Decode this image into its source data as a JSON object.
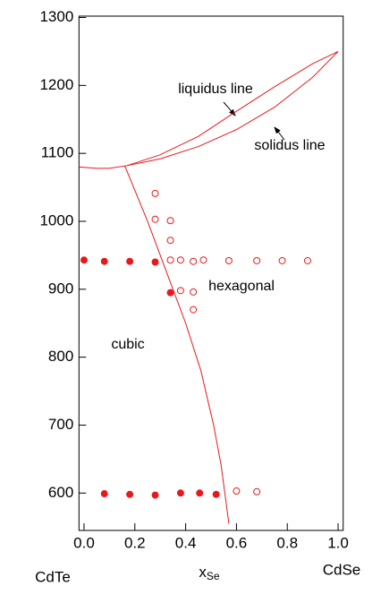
{
  "chart_data": {
    "type": "scatter",
    "x_label": "x",
    "x_label_sub": "Se",
    "annotations": [
      "liquidus line",
      "solidus line",
      "hexagonal",
      "cubic",
      "CdTe",
      "CdSe"
    ],
    "xlim": [
      -0.02,
      1.02
    ],
    "ylim": [
      545,
      1302
    ],
    "xticks": [
      {
        "value": 0,
        "label": "0.0"
      },
      0.2,
      0.4,
      0.6,
      0.8,
      {
        "value": 1,
        "label": "1.0"
      }
    ],
    "yticks": [
      600,
      700,
      800,
      900,
      1000,
      1100,
      1200,
      1300
    ],
    "series": [
      {
        "mode": "markers",
        "filled": true,
        "color": "#e8191c",
        "x": [
          0,
          0.08,
          0.18,
          0.28,
          0.34,
          0.08,
          0.18,
          0.28,
          0.38,
          0.455,
          0.52
        ],
        "values": [
          943,
          941,
          941,
          940,
          895,
          599,
          598,
          597,
          600,
          600,
          598
        ]
      },
      {
        "mode": "markers",
        "filled": false,
        "color": "#e8191c",
        "x": [
          0.28,
          0.28,
          0.34,
          0.34,
          0.34,
          0.38,
          0.43,
          0.47,
          0.57,
          0.68,
          0.78,
          0.88,
          0.38,
          0.43,
          0.43,
          0.6,
          0.68
        ],
        "values": [
          1041,
          1003,
          1001,
          972,
          943,
          943,
          941,
          943,
          942,
          942,
          942,
          942,
          898,
          896,
          870,
          603,
          602
        ]
      },
      {
        "mode": "lines",
        "color": "#e8191c",
        "x": [
          -0.02,
          0.05,
          0.1,
          0.17,
          0.3,
          0.45,
          0.6,
          0.75,
          0.9,
          1.0
        ],
        "values": [
          1080,
          1078,
          1078,
          1082,
          1098,
          1125,
          1162,
          1198,
          1232,
          1250
        ]
      },
      {
        "mode": "lines",
        "color": "#e8191c",
        "x": [
          0.17,
          0.3,
          0.45,
          0.6,
          0.75,
          0.9,
          1.0
        ],
        "values": [
          1082,
          1092,
          1110,
          1135,
          1168,
          1212,
          1250
        ]
      },
      {
        "mode": "lines",
        "color": "#e8191c",
        "x": [
          0.16,
          0.25,
          0.33,
          0.4,
          0.46,
          0.51,
          0.54,
          0.57
        ],
        "values": [
          1082,
          1000,
          920,
          850,
          780,
          700,
          640,
          555
        ]
      }
    ]
  }
}
